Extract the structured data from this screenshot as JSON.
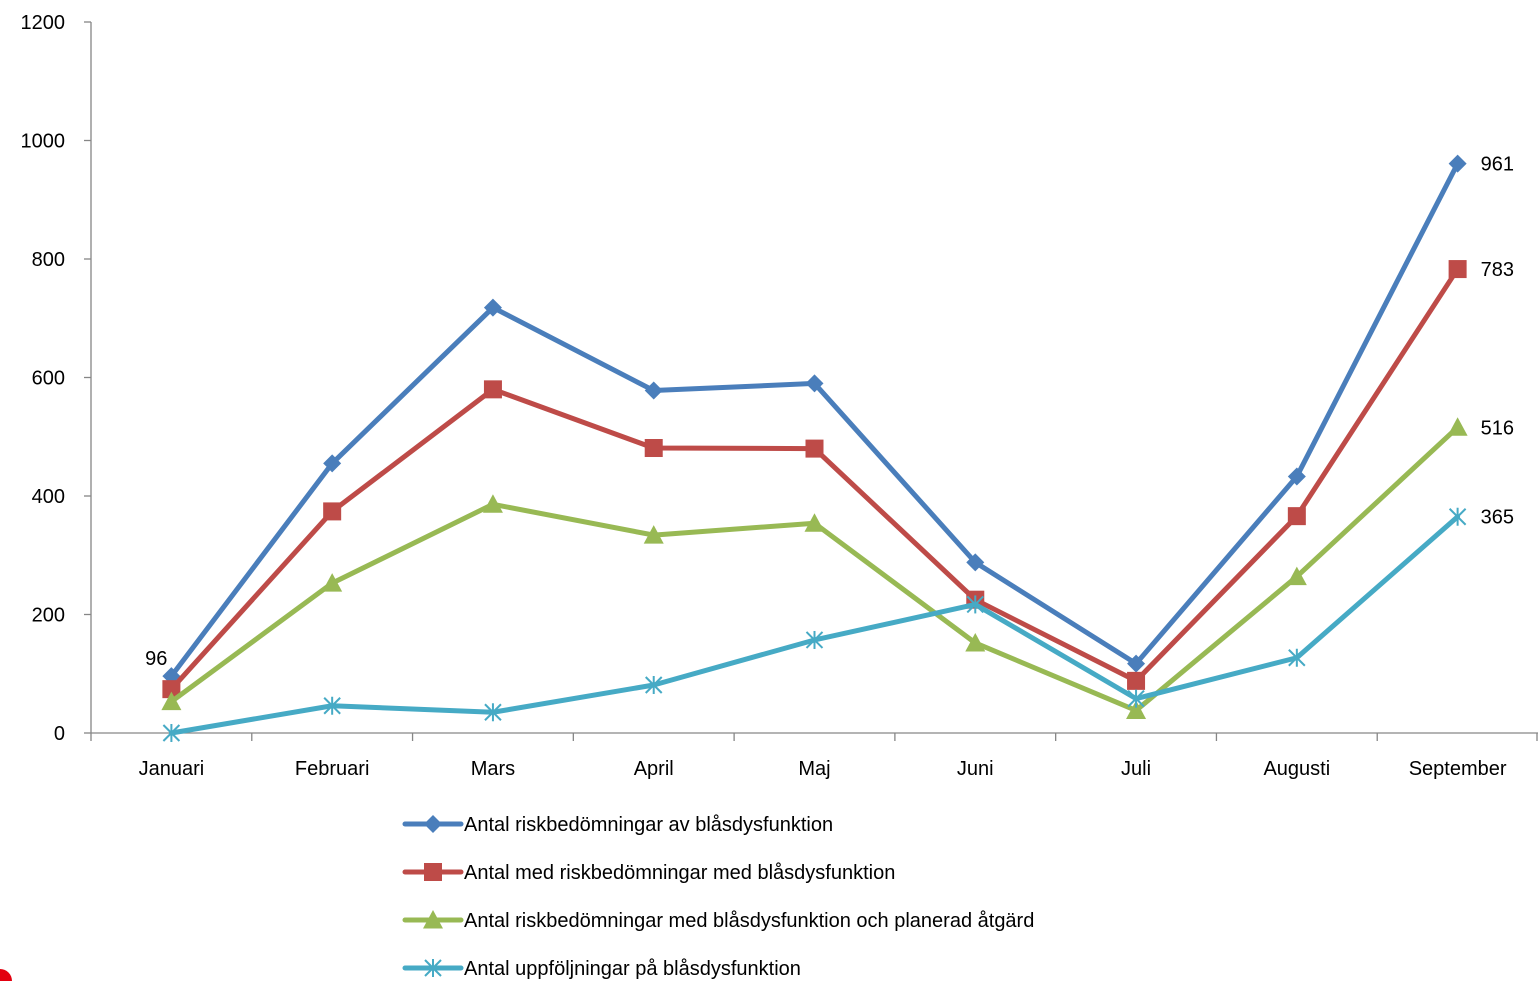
{
  "chart_data": {
    "type": "line",
    "categories": [
      "Januari",
      "Februari",
      "Mars",
      "April",
      "Maj",
      "Juni",
      "Juli",
      "Augusti",
      "September"
    ],
    "ylim": [
      0,
      1200
    ],
    "yticks": [
      0,
      200,
      400,
      600,
      800,
      1000,
      1200
    ],
    "grid": false,
    "legend_position": "bottom",
    "series": [
      {
        "name": "Antal riskbedömningar av blåsdysfunktion",
        "color": "#4A7EBB",
        "marker": "diamond",
        "values": [
          96,
          455,
          718,
          578,
          590,
          288,
          117,
          433,
          961
        ]
      },
      {
        "name": "Antal med riskbedömningar med blåsdysfunktion",
        "color": "#BE4B48",
        "marker": "square",
        "values": [
          74,
          374,
          580,
          481,
          480,
          225,
          88,
          366,
          783
        ]
      },
      {
        "name": "Antal riskbedömningar med blåsdysfunktion och planerad åtgärd",
        "color": "#98B954",
        "marker": "triangle",
        "values": [
          53,
          253,
          386,
          334,
          354,
          152,
          38,
          264,
          516
        ]
      },
      {
        "name": "Antal uppföljningar på blåsdysfunktion",
        "color": "#46AAC5",
        "marker": "asterisk",
        "values": [
          0,
          46,
          35,
          81,
          157,
          217,
          58,
          127,
          365
        ]
      }
    ],
    "data_labels": [
      {
        "series": 0,
        "index": 0,
        "text": "96"
      },
      {
        "series": 0,
        "index": 8,
        "text": "961"
      },
      {
        "series": 1,
        "index": 8,
        "text": "783"
      },
      {
        "series": 2,
        "index": 8,
        "text": "516"
      },
      {
        "series": 3,
        "index": 8,
        "text": "365"
      }
    ]
  }
}
